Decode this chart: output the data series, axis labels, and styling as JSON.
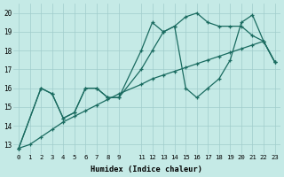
{
  "xlabel": "Humidex (Indice chaleur)",
  "bg_color": "#c5eae6",
  "grid_color": "#a0cccc",
  "line_color": "#1a6b60",
  "xlim": [
    -0.5,
    23.5
  ],
  "ylim": [
    12.5,
    20.5
  ],
  "xticks": [
    0,
    1,
    2,
    3,
    4,
    5,
    6,
    7,
    8,
    9,
    11,
    12,
    13,
    14,
    15,
    16,
    17,
    18,
    19,
    20,
    21,
    22,
    23
  ],
  "yticks": [
    13,
    14,
    15,
    16,
    17,
    18,
    19,
    20
  ],
  "line1_x": [
    0,
    2,
    3,
    4,
    5,
    6,
    7,
    8,
    9,
    11,
    12,
    13,
    14,
    15,
    16,
    17,
    18,
    19,
    20,
    21,
    22,
    23
  ],
  "line1_y": [
    12.8,
    16.0,
    15.7,
    14.4,
    14.7,
    16.0,
    16.0,
    15.5,
    15.5,
    17.0,
    18.0,
    19.0,
    19.3,
    16.0,
    15.5,
    16.0,
    16.5,
    17.5,
    19.5,
    19.9,
    18.5,
    17.4
  ],
  "line2_x": [
    0,
    2,
    3,
    4,
    5,
    6,
    7,
    8,
    9,
    11,
    12,
    13,
    14,
    15,
    16,
    17,
    18,
    19,
    20,
    21,
    22,
    23
  ],
  "line2_y": [
    12.8,
    16.0,
    15.7,
    14.4,
    14.7,
    16.0,
    16.0,
    15.5,
    15.5,
    18.0,
    19.5,
    19.0,
    19.3,
    19.8,
    20.0,
    19.5,
    19.3,
    19.3,
    19.3,
    18.8,
    18.5,
    17.4
  ],
  "line3_x": [
    0,
    1,
    2,
    3,
    4,
    5,
    6,
    7,
    8,
    9,
    11,
    12,
    13,
    14,
    15,
    16,
    17,
    18,
    19,
    20,
    21,
    22,
    23
  ],
  "line3_y": [
    12.8,
    13.0,
    13.4,
    13.8,
    14.2,
    14.5,
    14.8,
    15.1,
    15.4,
    15.7,
    16.2,
    16.5,
    16.7,
    16.9,
    17.1,
    17.3,
    17.5,
    17.7,
    17.9,
    18.1,
    18.3,
    18.5,
    17.4
  ]
}
